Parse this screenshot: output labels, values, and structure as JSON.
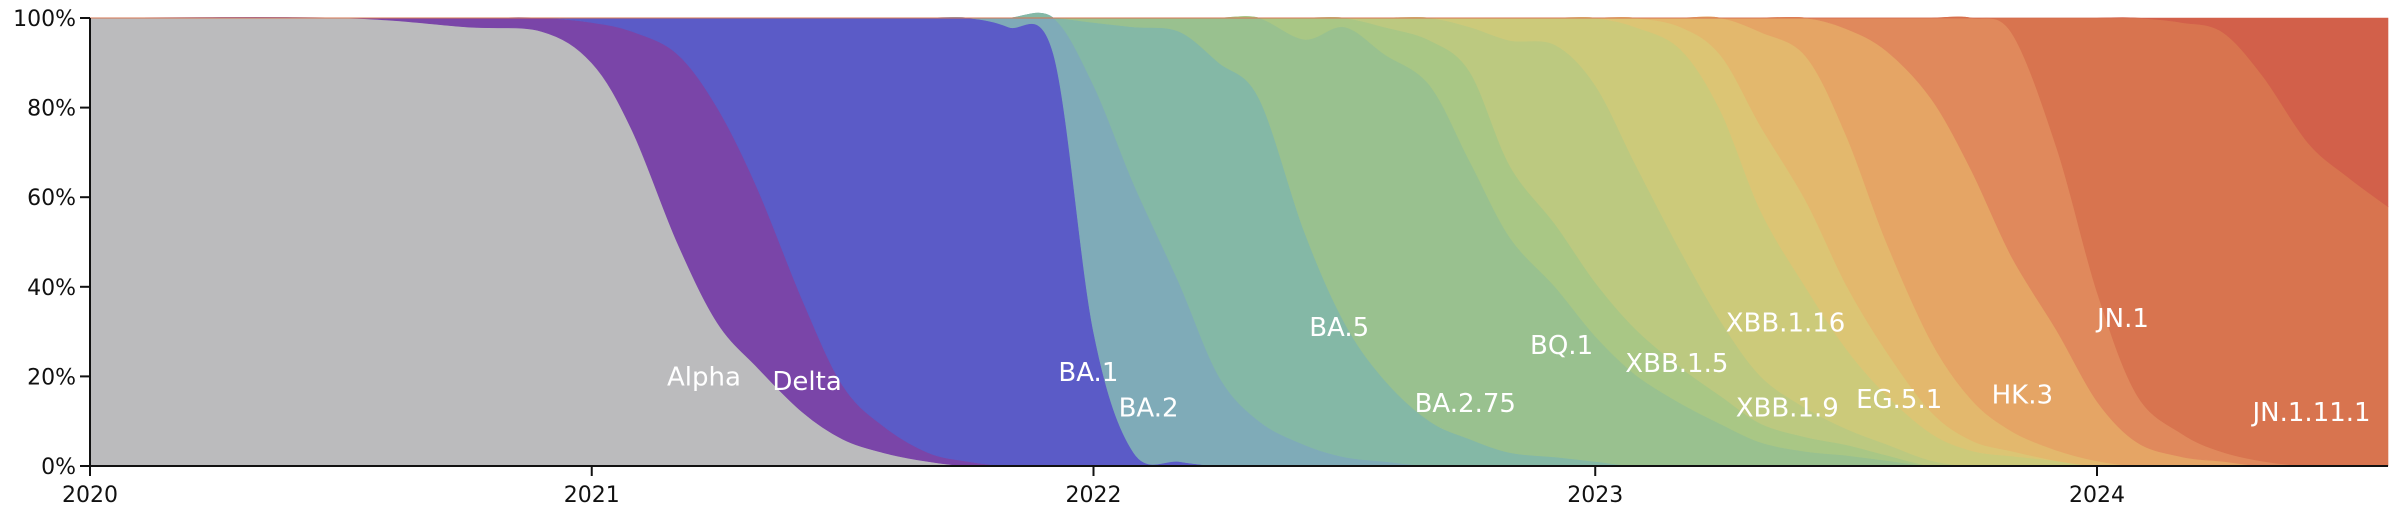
{
  "chart_data": {
    "type": "area",
    "stacked": true,
    "normalized": true,
    "title": "",
    "xlabel": "",
    "ylabel": "",
    "ylim": [
      0,
      100
    ],
    "y_ticks": [
      "0%",
      "20%",
      "40%",
      "60%",
      "80%",
      "100%"
    ],
    "x_ticks": [
      "2020",
      "2021",
      "2022",
      "2023",
      "2024"
    ],
    "x_tick_values": [
      2020.0,
      2021.0,
      2022.0,
      2023.0,
      2024.0
    ],
    "xlim": [
      2020.0,
      2024.58
    ],
    "grid": false,
    "legend": "none (series labelled inline)",
    "x": [
      2020.0,
      2020.5,
      2020.75,
      2020.9,
      2021.0,
      2021.08,
      2021.17,
      2021.25,
      2021.33,
      2021.42,
      2021.5,
      2021.58,
      2021.67,
      2021.75,
      2021.83,
      2021.92,
      2022.0,
      2022.08,
      2022.17,
      2022.25,
      2022.33,
      2022.42,
      2022.5,
      2022.58,
      2022.67,
      2022.75,
      2022.83,
      2022.92,
      2023.0,
      2023.08,
      2023.17,
      2023.25,
      2023.33,
      2023.42,
      2023.5,
      2023.58,
      2023.67,
      2023.75,
      2023.83,
      2023.92,
      2024.0,
      2024.08,
      2024.17,
      2024.25,
      2024.33,
      2024.42,
      2024.5,
      2024.58
    ],
    "series": [
      {
        "key": "other",
        "color": "#bbbbbd",
        "values": [
          100,
          100,
          98,
          97,
          90,
          75,
          50,
          32,
          22,
          12,
          6,
          3,
          1,
          0,
          0,
          0,
          0,
          0,
          0,
          0,
          0,
          0,
          0,
          0,
          0,
          0,
          0,
          0,
          0,
          0,
          0,
          0,
          0,
          0,
          0,
          0,
          0,
          0,
          0,
          0,
          0,
          0,
          0,
          0,
          0,
          0,
          0,
          0
        ]
      },
      {
        "name": "Alpha",
        "color": "#7a45a8",
        "values": [
          0,
          0,
          2,
          3,
          9,
          22,
          42,
          48,
          40,
          25,
          12,
          6,
          2,
          1,
          0,
          0,
          0,
          0,
          0,
          0,
          0,
          0,
          0,
          0,
          0,
          0,
          0,
          0,
          0,
          0,
          0,
          0,
          0,
          0,
          0,
          0,
          0,
          0,
          0,
          0,
          0,
          0,
          0,
          0,
          0,
          0,
          0,
          0
        ]
      },
      {
        "name": "Delta",
        "color": "#5b5bc7",
        "values": [
          0,
          0,
          0,
          0,
          1,
          3,
          8,
          20,
          38,
          63,
          82,
          91,
          97,
          99,
          98,
          92,
          30,
          3,
          1,
          0,
          0,
          0,
          0,
          0,
          0,
          0,
          0,
          0,
          0,
          0,
          0,
          0,
          0,
          0,
          0,
          0,
          0,
          0,
          0,
          0,
          0,
          0,
          0,
          0,
          0,
          0,
          0,
          0
        ]
      },
      {
        "name": "BA.1",
        "color": "#7fabb8",
        "values": [
          0,
          0,
          0,
          0,
          0,
          0,
          0,
          0,
          0,
          0,
          0,
          0,
          0,
          0,
          2,
          8,
          55,
          60,
          40,
          20,
          10,
          5,
          2,
          1,
          0,
          0,
          0,
          0,
          0,
          0,
          0,
          0,
          0,
          0,
          0,
          0,
          0,
          0,
          0,
          0,
          0,
          0,
          0,
          0,
          0,
          0,
          0,
          0
        ]
      },
      {
        "name": "BA.2",
        "color": "#84b8a6",
        "values": [
          0,
          0,
          0,
          0,
          0,
          0,
          0,
          0,
          0,
          0,
          0,
          0,
          0,
          0,
          0,
          0,
          14,
          35,
          56,
          70,
          72,
          50,
          30,
          18,
          10,
          6,
          3,
          2,
          1,
          0,
          0,
          0,
          0,
          0,
          0,
          0,
          0,
          0,
          0,
          0,
          0,
          0,
          0,
          0,
          0,
          0,
          0,
          0
        ]
      },
      {
        "name": "BA.5",
        "color": "#99c18f",
        "values": [
          0,
          0,
          0,
          0,
          0,
          0,
          0,
          0,
          0,
          0,
          0,
          0,
          0,
          0,
          0,
          0,
          1,
          2,
          3,
          10,
          18,
          45,
          66,
          72,
          75,
          62,
          48,
          38,
          28,
          20,
          14,
          9,
          5,
          3,
          2,
          1,
          0,
          0,
          0,
          0,
          0,
          0,
          0,
          0,
          0,
          0,
          0,
          0
        ]
      },
      {
        "name": "BA.2.75",
        "color": "#a9c785",
        "values": [
          0,
          0,
          0,
          0,
          0,
          0,
          0,
          0,
          0,
          0,
          0,
          0,
          0,
          0,
          0,
          0,
          0,
          0,
          0,
          0,
          0,
          5,
          2,
          6,
          10,
          20,
          16,
          14,
          12,
          10,
          8,
          6,
          4,
          3,
          2,
          1,
          0,
          0,
          0,
          0,
          0,
          0,
          0,
          0,
          0,
          0,
          0,
          0
        ]
      },
      {
        "name": "BQ.1",
        "color": "#bcc980",
        "values": [
          0,
          0,
          0,
          0,
          0,
          0,
          0,
          0,
          0,
          0,
          0,
          0,
          0,
          0,
          0,
          0,
          0,
          0,
          0,
          0,
          0,
          0,
          0,
          2,
          5,
          10,
          28,
          40,
          44,
          36,
          26,
          16,
          10,
          6,
          3,
          2,
          1,
          0,
          0,
          0,
          0,
          0,
          0,
          0,
          0,
          0,
          0,
          0
        ]
      },
      {
        "name": "XBB.1.5",
        "color": "#ccca7a",
        "values": [
          0,
          0,
          0,
          0,
          0,
          0,
          0,
          0,
          0,
          0,
          0,
          0,
          0,
          0,
          0,
          0,
          0,
          0,
          0,
          0,
          0,
          0,
          0,
          0,
          0,
          2,
          5,
          6,
          15,
          30,
          45,
          45,
          35,
          25,
          15,
          9,
          5,
          3,
          2,
          1,
          0,
          0,
          0,
          0,
          0,
          0,
          0,
          0
        ]
      },
      {
        "name": "XBB.1.9",
        "color": "#dcc574",
        "values": [
          0,
          0,
          0,
          0,
          0,
          0,
          0,
          0,
          0,
          0,
          0,
          0,
          0,
          0,
          0,
          0,
          0,
          0,
          0,
          0,
          0,
          0,
          0,
          0,
          0,
          0,
          0,
          0,
          0,
          2,
          5,
          12,
          18,
          18,
          12,
          8,
          4,
          2,
          1,
          0,
          0,
          0,
          0,
          0,
          0,
          0,
          0,
          0
        ]
      },
      {
        "name": "XBB.1.16",
        "color": "#e3b86d",
        "values": [
          0,
          0,
          0,
          0,
          0,
          0,
          0,
          0,
          0,
          0,
          0,
          0,
          0,
          0,
          0,
          0,
          0,
          0,
          0,
          0,
          0,
          0,
          0,
          0,
          0,
          0,
          0,
          0,
          0,
          0,
          2,
          8,
          20,
          30,
          28,
          20,
          13,
          8,
          4,
          2,
          1,
          0,
          0,
          0,
          0,
          0,
          0,
          0
        ]
      },
      {
        "name": "EG.5.1",
        "color": "#e5a565",
        "values": [
          0,
          0,
          0,
          0,
          0,
          0,
          0,
          0,
          0,
          0,
          0,
          0,
          0,
          0,
          0,
          0,
          0,
          0,
          0,
          0,
          0,
          0,
          0,
          0,
          0,
          0,
          0,
          0,
          0,
          0,
          0,
          0,
          3,
          8,
          20,
          35,
          45,
          45,
          35,
          23,
          12,
          5,
          2,
          1,
          0,
          0,
          0,
          0
        ]
      },
      {
        "name": "HK.3",
        "color": "#e0895c",
        "values": [
          0,
          0,
          0,
          0,
          0,
          0,
          0,
          0,
          0,
          0,
          0,
          0,
          0,
          0,
          0,
          0,
          0,
          0,
          0,
          0,
          0,
          0,
          0,
          0,
          0,
          0,
          0,
          0,
          0,
          0,
          0,
          0,
          0,
          0,
          2,
          6,
          15,
          30,
          45,
          35,
          22,
          10,
          5,
          2,
          1,
          0,
          0,
          0
        ]
      },
      {
        "name": "JN.1",
        "color": "#d8744f",
        "values": [
          0,
          0,
          0,
          0,
          0,
          0,
          0,
          0,
          0,
          0,
          0,
          0,
          0,
          0,
          0,
          0,
          0,
          0,
          0,
          0,
          0,
          0,
          0,
          0,
          0,
          0,
          0,
          0,
          0,
          0,
          0,
          0,
          0,
          0,
          0,
          0,
          0,
          0,
          3,
          25,
          55,
          80,
          90,
          90,
          80,
          65,
          60,
          55
        ]
      },
      {
        "name": "JN.1.11.1",
        "color": "#d2604a",
        "values": [
          0,
          0,
          0,
          0,
          0,
          0,
          0,
          0,
          0,
          0,
          0,
          0,
          0,
          0,
          0,
          0,
          0,
          0,
          0,
          0,
          0,
          0,
          0,
          0,
          0,
          0,
          0,
          0,
          0,
          0,
          0,
          0,
          0,
          0,
          0,
          0,
          0,
          0,
          0,
          0,
          0,
          0,
          1,
          3,
          12,
          25,
          33,
          40
        ]
      }
    ],
    "annotations": [
      {
        "text": "Alpha",
        "x": 2021.15,
        "y": 18
      },
      {
        "text": "Delta",
        "x": 2021.36,
        "y": 17
      },
      {
        "text": "BA.1",
        "x": 2021.93,
        "y": 19
      },
      {
        "text": "BA.2",
        "x": 2022.05,
        "y": 11
      },
      {
        "text": "BA.5",
        "x": 2022.43,
        "y": 29
      },
      {
        "text": "BA.2.75",
        "x": 2022.64,
        "y": 12
      },
      {
        "text": "BQ.1",
        "x": 2022.87,
        "y": 25
      },
      {
        "text": "XBB.1.5",
        "x": 2023.06,
        "y": 21
      },
      {
        "text": "XBB.1.16",
        "x": 2023.26,
        "y": 30
      },
      {
        "text": "XBB.1.9",
        "x": 2023.28,
        "y": 11
      },
      {
        "text": "EG.5.1",
        "x": 2023.52,
        "y": 13
      },
      {
        "text": "HK.3",
        "x": 2023.79,
        "y": 14
      },
      {
        "text": "JN.1",
        "x": 2024.0,
        "y": 31
      },
      {
        "text": "JN.1.11.1",
        "x": 2024.31,
        "y": 10
      }
    ]
  }
}
